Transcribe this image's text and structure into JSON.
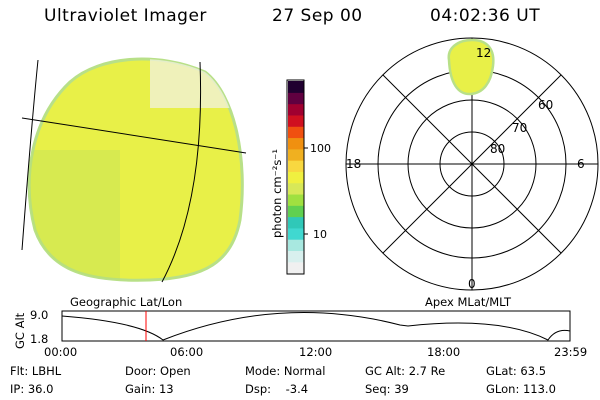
{
  "header": {
    "instrument": "Ultraviolet Imager",
    "date": "27 Sep 00",
    "time": "04:02:36 UT"
  },
  "colorbar": {
    "unit_label": "photon cm⁻²s⁻¹",
    "ticks": [
      "100",
      "10"
    ],
    "colors": [
      "#f0f0f0",
      "#d8f0ee",
      "#a8e8e0",
      "#40d8d0",
      "#30c8b8",
      "#60d050",
      "#a0e040",
      "#d8e858",
      "#f0f040",
      "#f8d840",
      "#f0b020",
      "#f09010",
      "#f05010",
      "#d01020",
      "#a00030",
      "#600040",
      "#200030"
    ]
  },
  "geographic_panel": {
    "label": "Geographic Lat/Lon",
    "disk_color": "#e8f048",
    "edge_color": "#b8e088"
  },
  "polar_panel": {
    "label": "Apex MLat/MLT",
    "lat_labels": [
      "60",
      "70",
      "80"
    ],
    "mlt_labels": [
      "12",
      "18",
      "6",
      "0"
    ]
  },
  "altitude_plot": {
    "ylabel": "GC Alt",
    "y_ticks": [
      "9.0",
      "1.8"
    ],
    "x_ticks": [
      "00:00",
      "06:00",
      "12:00",
      "18:00",
      "23:59"
    ],
    "current_time_marker_color": "#ff0000"
  },
  "info": {
    "row1": [
      "Flt: LBHL",
      "Door: Open",
      "Mode: Normal",
      "GC Alt: 2.7 Re",
      "GLat:  63.5"
    ],
    "row2": [
      "IP: 36.0",
      "Gain: 13",
      "Dsp:    -3.4",
      "Seq: 39",
      "GLon: 113.0"
    ]
  }
}
